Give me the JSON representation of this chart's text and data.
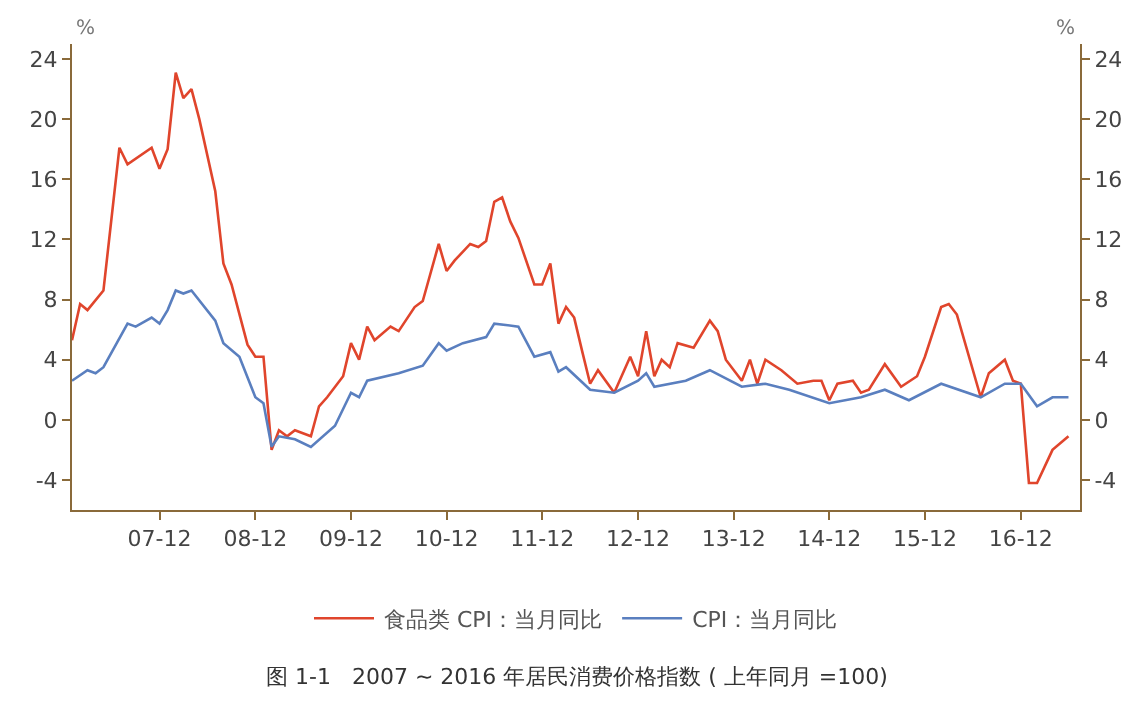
{
  "chart_data": {
    "type": "line",
    "xlabel": null,
    "ylabel": "%",
    "y2label": "%",
    "annotations": [
      "图 1-1   2007 ~ 2016 年居民消费价格指数 ( 上年同月 =100)"
    ],
    "series": [
      {
        "name": "食品类 CPI：当月同比",
        "color": "#e0452c",
        "x": [
          "2007-01",
          "2007-02",
          "2007-03",
          "2007-05",
          "2007-07",
          "2007-08",
          "2007-11",
          "2007-12",
          "2008-01",
          "2008-02",
          "2008-03",
          "2008-04",
          "2008-05",
          "2008-07",
          "2008-08",
          "2008-09",
          "2008-11",
          "2008-12",
          "2009-01",
          "2009-02",
          "2009-03",
          "2009-04",
          "2009-05",
          "2009-07",
          "2009-08",
          "2009-09",
          "2009-11",
          "2009-12",
          "2010-01",
          "2010-02",
          "2010-03",
          "2010-05",
          "2010-06",
          "2010-08",
          "2010-09",
          "2010-11",
          "2010-12",
          "2011-01",
          "2011-03",
          "2011-04",
          "2011-05",
          "2011-06",
          "2011-07",
          "2011-08",
          "2011-09",
          "2011-11",
          "2011-12",
          "2012-01",
          "2012-02",
          "2012-03",
          "2012-04",
          "2012-05",
          "2012-06",
          "2012-07",
          "2012-09",
          "2012-11",
          "2012-12",
          "2013-01",
          "2013-02",
          "2013-03",
          "2013-04",
          "2013-05",
          "2013-07",
          "2013-09",
          "2013-10",
          "2013-11",
          "2014-01",
          "2014-02",
          "2014-03",
          "2014-04",
          "2014-06",
          "2014-08",
          "2014-10",
          "2014-11",
          "2014-12",
          "2015-01",
          "2015-03",
          "2015-04",
          "2015-05",
          "2015-07",
          "2015-09",
          "2015-11",
          "2015-12",
          "2016-02",
          "2016-03",
          "2016-04",
          "2016-07",
          "2016-08",
          "2016-10",
          "2016-11",
          "2016-12",
          "2017-01",
          "2017-02",
          "2017-04",
          "2017-06"
        ],
        "values": [
          5.3,
          7.7,
          7.3,
          8.6,
          18.1,
          17,
          18.1,
          16.7,
          18,
          23.1,
          21.4,
          22,
          20,
          15.2,
          10.4,
          9,
          5,
          4.2,
          4.2,
          -2,
          -0.7,
          -1.1,
          -0.7,
          -1.1,
          0.9,
          1.5,
          2.9,
          5.1,
          4,
          6.2,
          5.3,
          6.2,
          5.9,
          7.5,
          7.9,
          11.7,
          9.9,
          10.6,
          11.7,
          11.5,
          11.9,
          14.5,
          14.8,
          13.2,
          12.1,
          9,
          9,
          10.4,
          6.4,
          7.5,
          6.8,
          4.6,
          2.4,
          3.3,
          1.8,
          4.2,
          2.9,
          5.9,
          2.9,
          4,
          3.5,
          5.1,
          4.8,
          6.6,
          5.9,
          4,
          2.6,
          4,
          2.4,
          4,
          3.3,
          2.4,
          2.6,
          2.6,
          1.3,
          2.4,
          2.6,
          1.8,
          2,
          3.7,
          2.2,
          2.9,
          4.2,
          7.5,
          7.7,
          7,
          1.5,
          3.1,
          4,
          2.6,
          2.4,
          -4.2,
          -4.2,
          -2,
          -1.1
        ]
      },
      {
        "name": "CPI：当月同比",
        "color": "#5a7fbf",
        "x": [
          "2007-01",
          "2007-03",
          "2007-04",
          "2007-05",
          "2007-08",
          "2007-09",
          "2007-11",
          "2007-12",
          "2008-01",
          "2008-02",
          "2008-03",
          "2008-04",
          "2008-07",
          "2008-08",
          "2008-10",
          "2008-12",
          "2009-01",
          "2009-02",
          "2009-03",
          "2009-05",
          "2009-07",
          "2009-10",
          "2009-12",
          "2010-01",
          "2010-02",
          "2010-06",
          "2010-09",
          "2010-11",
          "2010-12",
          "2011-02",
          "2011-05",
          "2011-06",
          "2011-09",
          "2011-11",
          "2012-01",
          "2012-02",
          "2012-03",
          "2012-06",
          "2012-09",
          "2012-12",
          "2013-01",
          "2013-02",
          "2013-06",
          "2013-09",
          "2014-01",
          "2014-04",
          "2014-07",
          "2014-12",
          "2015-04",
          "2015-07",
          "2015-10",
          "2016-02",
          "2016-07",
          "2016-10",
          "2016-12",
          "2017-02",
          "2017-04",
          "2017-06"
        ],
        "values": [
          2.6,
          3.3,
          3.1,
          3.5,
          6.4,
          6.2,
          6.8,
          6.4,
          7.3,
          8.6,
          8.4,
          8.6,
          6.6,
          5.1,
          4.2,
          1.5,
          1.1,
          -1.8,
          -1.1,
          -1.3,
          -1.8,
          -0.4,
          1.8,
          1.5,
          2.6,
          3.1,
          3.6,
          5.1,
          4.6,
          5.1,
          5.5,
          6.4,
          6.2,
          4.2,
          4.5,
          3.2,
          3.5,
          2,
          1.8,
          2.6,
          3.1,
          2.2,
          2.6,
          3.3,
          2.2,
          2.4,
          2,
          1.1,
          1.5,
          2,
          1.3,
          2.4,
          1.5,
          2.4,
          2.4,
          0.9,
          1.5,
          1.5
        ]
      }
    ],
    "xlim": [
      "2007-01",
      "2017-07-15"
    ],
    "xticks": [
      {
        "value": "2007-12",
        "label": "07-12"
      },
      {
        "value": "2008-12",
        "label": "08-12"
      },
      {
        "value": "2009-12",
        "label": "09-12"
      },
      {
        "value": "2010-12",
        "label": "10-12"
      },
      {
        "value": "2011-12",
        "label": "11-12"
      },
      {
        "value": "2012-12",
        "label": "12-12"
      },
      {
        "value": "2013-12",
        "label": "13-12"
      },
      {
        "value": "2014-12",
        "label": "14-12"
      },
      {
        "value": "2015-12",
        "label": "15-12"
      },
      {
        "value": "2016-12",
        "label": "16-12"
      }
    ],
    "ylim": [
      -6,
      25
    ],
    "yticks": [
      -4,
      0,
      4,
      8,
      12,
      16,
      20,
      24
    ],
    "y2lim": [
      -6,
      25
    ],
    "y2ticks": [
      -4,
      0,
      4,
      8,
      12,
      16,
      20,
      24
    ],
    "legend": "bottom",
    "marker": "none",
    "line_style": "solid"
  }
}
